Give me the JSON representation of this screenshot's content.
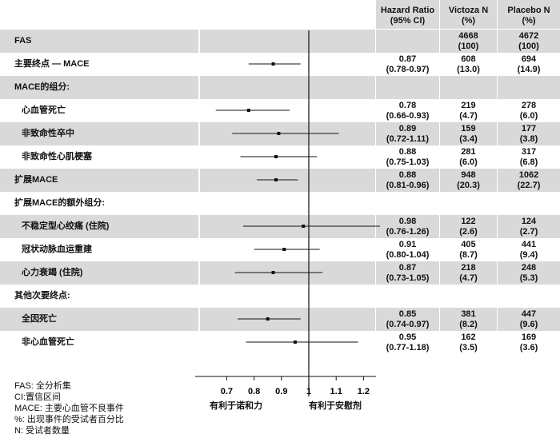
{
  "headers": {
    "hr": "Hazard Ratio\n(95% CI)",
    "victoza": "Victoza N\n(%)",
    "placebo": "Placebo N\n(%)"
  },
  "chart_data": {
    "type": "forest",
    "reference_line": 1,
    "x_ticks": [
      0.7,
      0.8,
      0.9,
      1,
      1.1,
      1.2
    ],
    "x_tick_labels": [
      "0.7",
      "0.8",
      "0.9",
      "1",
      "1.1",
      "1.2"
    ],
    "favor_left": "有利于诺和力",
    "favor_right": "有利于安慰剂",
    "rows": [
      {
        "label": "FAS",
        "indent": false,
        "shaded": true,
        "hr": null,
        "lo": null,
        "hi": null,
        "hr_text": "",
        "victoza": "4668\n(100)",
        "placebo": "4672\n(100)"
      },
      {
        "label": "主要终点 — MACE",
        "indent": false,
        "shaded": false,
        "hr": 0.87,
        "lo": 0.78,
        "hi": 0.97,
        "hr_text": "0.87\n(0.78-0.97)",
        "victoza": "608\n(13.0)",
        "placebo": "694\n(14.9)"
      },
      {
        "label": "MACE的组分:",
        "indent": false,
        "shaded": true,
        "hr": null,
        "lo": null,
        "hi": null,
        "hr_text": "",
        "victoza": "",
        "placebo": ""
      },
      {
        "label": "心血管死亡",
        "indent": true,
        "shaded": false,
        "hr": 0.78,
        "lo": 0.66,
        "hi": 0.93,
        "hr_text": "0.78\n(0.66-0.93)",
        "victoza": "219\n(4.7)",
        "placebo": "278\n(6.0)"
      },
      {
        "label": "非致命性卒中",
        "indent": true,
        "shaded": true,
        "hr": 0.89,
        "lo": 0.72,
        "hi": 1.11,
        "hr_text": "0.89\n(0.72-1.11)",
        "victoza": "159\n(3.4)",
        "placebo": "177\n(3.8)"
      },
      {
        "label": "非致命性心肌梗塞",
        "indent": true,
        "shaded": false,
        "hr": 0.88,
        "lo": 0.75,
        "hi": 1.03,
        "hr_text": "0.88\n(0.75-1.03)",
        "victoza": "281\n(6.0)",
        "placebo": "317\n(6.8)"
      },
      {
        "label": "扩展MACE",
        "indent": false,
        "shaded": true,
        "hr": 0.88,
        "lo": 0.81,
        "hi": 0.96,
        "hr_text": "0.88\n(0.81-0.96)",
        "victoza": "948\n(20.3)",
        "placebo": "1062\n(22.7)"
      },
      {
        "label": "扩展MACE的额外组分:",
        "indent": false,
        "shaded": false,
        "hr": null,
        "lo": null,
        "hi": null,
        "hr_text": "",
        "victoza": "",
        "placebo": ""
      },
      {
        "label": "不稳定型心绞痛 (住院)",
        "indent": true,
        "shaded": true,
        "hr": 0.98,
        "lo": 0.76,
        "hi": 1.26,
        "hr_text": "0.98\n(0.76-1.26)",
        "victoza": "122\n(2.6)",
        "placebo": "124\n(2.7)"
      },
      {
        "label": "冠状动脉血运重建",
        "indent": true,
        "shaded": false,
        "hr": 0.91,
        "lo": 0.8,
        "hi": 1.04,
        "hr_text": "0.91\n(0.80-1.04)",
        "victoza": "405\n(8.7)",
        "placebo": "441\n(9.4)"
      },
      {
        "label": "心力衰竭 (住院)",
        "indent": true,
        "shaded": true,
        "hr": 0.87,
        "lo": 0.73,
        "hi": 1.05,
        "hr_text": "0.87\n(0.73-1.05)",
        "victoza": "218\n(4.7)",
        "placebo": "248\n(5.3)"
      },
      {
        "label": "其他次要终点:",
        "indent": false,
        "shaded": false,
        "hr": null,
        "lo": null,
        "hi": null,
        "hr_text": "",
        "victoza": "",
        "placebo": ""
      },
      {
        "label": "全因死亡",
        "indent": true,
        "shaded": true,
        "hr": 0.85,
        "lo": 0.74,
        "hi": 0.97,
        "hr_text": "0.85\n(0.74-0.97)",
        "victoza": "381\n(8.2)",
        "placebo": "447\n(9.6)"
      },
      {
        "label": "非心血管死亡",
        "indent": true,
        "shaded": false,
        "hr": 0.95,
        "lo": 0.77,
        "hi": 1.18,
        "hr_text": "0.95\n(0.77-1.18)",
        "victoza": "162\n(3.5)",
        "placebo": "169\n(3.6)"
      }
    ]
  },
  "footnotes": [
    "FAS: 全分析集",
    "CI:置信区间",
    "MACE: 主要心血管不良事件",
    "%: 出现事件的受试者百分比",
    "N: 受试者数量"
  ]
}
